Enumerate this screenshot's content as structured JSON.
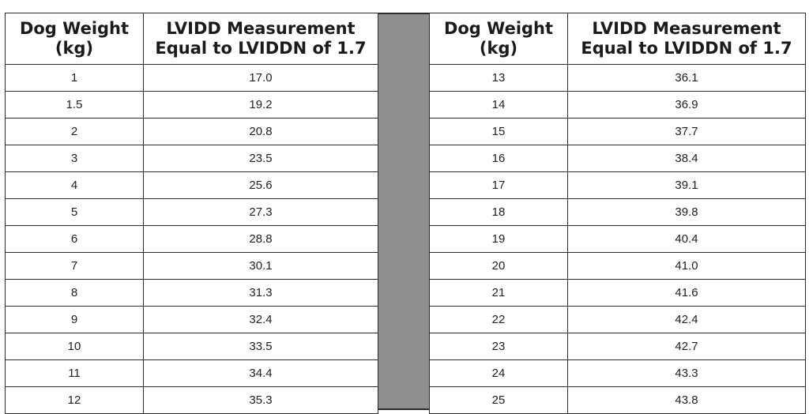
{
  "table": {
    "headers": {
      "weight_line1": "Dog Weight",
      "weight_line2": "(kg)",
      "lvidd_line1": "LVIDD Measurement",
      "lvidd_line2": "Equal to LVIDDN of 1.7"
    },
    "left_rows": [
      {
        "weight": "1",
        "lvidd": "17.0"
      },
      {
        "weight": "1.5",
        "lvidd": "19.2"
      },
      {
        "weight": "2",
        "lvidd": "20.8"
      },
      {
        "weight": "3",
        "lvidd": "23.5"
      },
      {
        "weight": "4",
        "lvidd": "25.6"
      },
      {
        "weight": "5",
        "lvidd": "27.3"
      },
      {
        "weight": "6",
        "lvidd": "28.8"
      },
      {
        "weight": "7",
        "lvidd": "30.1"
      },
      {
        "weight": "8",
        "lvidd": "31.3"
      },
      {
        "weight": "9",
        "lvidd": "32.4"
      },
      {
        "weight": "10",
        "lvidd": "33.5"
      },
      {
        "weight": "11",
        "lvidd": "34.4"
      },
      {
        "weight": "12",
        "lvidd": "35.3"
      }
    ],
    "right_rows": [
      {
        "weight": "13",
        "lvidd": "36.1"
      },
      {
        "weight": "14",
        "lvidd": "36.9"
      },
      {
        "weight": "15",
        "lvidd": "37.7"
      },
      {
        "weight": "16",
        "lvidd": "38.4"
      },
      {
        "weight": "17",
        "lvidd": "39.1"
      },
      {
        "weight": "18",
        "lvidd": "39.8"
      },
      {
        "weight": "19",
        "lvidd": "40.4"
      },
      {
        "weight": "20",
        "lvidd": "41.0"
      },
      {
        "weight": "21",
        "lvidd": "41.6"
      },
      {
        "weight": "22",
        "lvidd": "42.4"
      },
      {
        "weight": "23",
        "lvidd": "42.7"
      },
      {
        "weight": "24",
        "lvidd": "43.3"
      },
      {
        "weight": "25",
        "lvidd": "43.8"
      }
    ]
  },
  "colors": {
    "divider": "#8f8f91",
    "border": "#2b2b2b",
    "text": "#1a1a1a"
  }
}
